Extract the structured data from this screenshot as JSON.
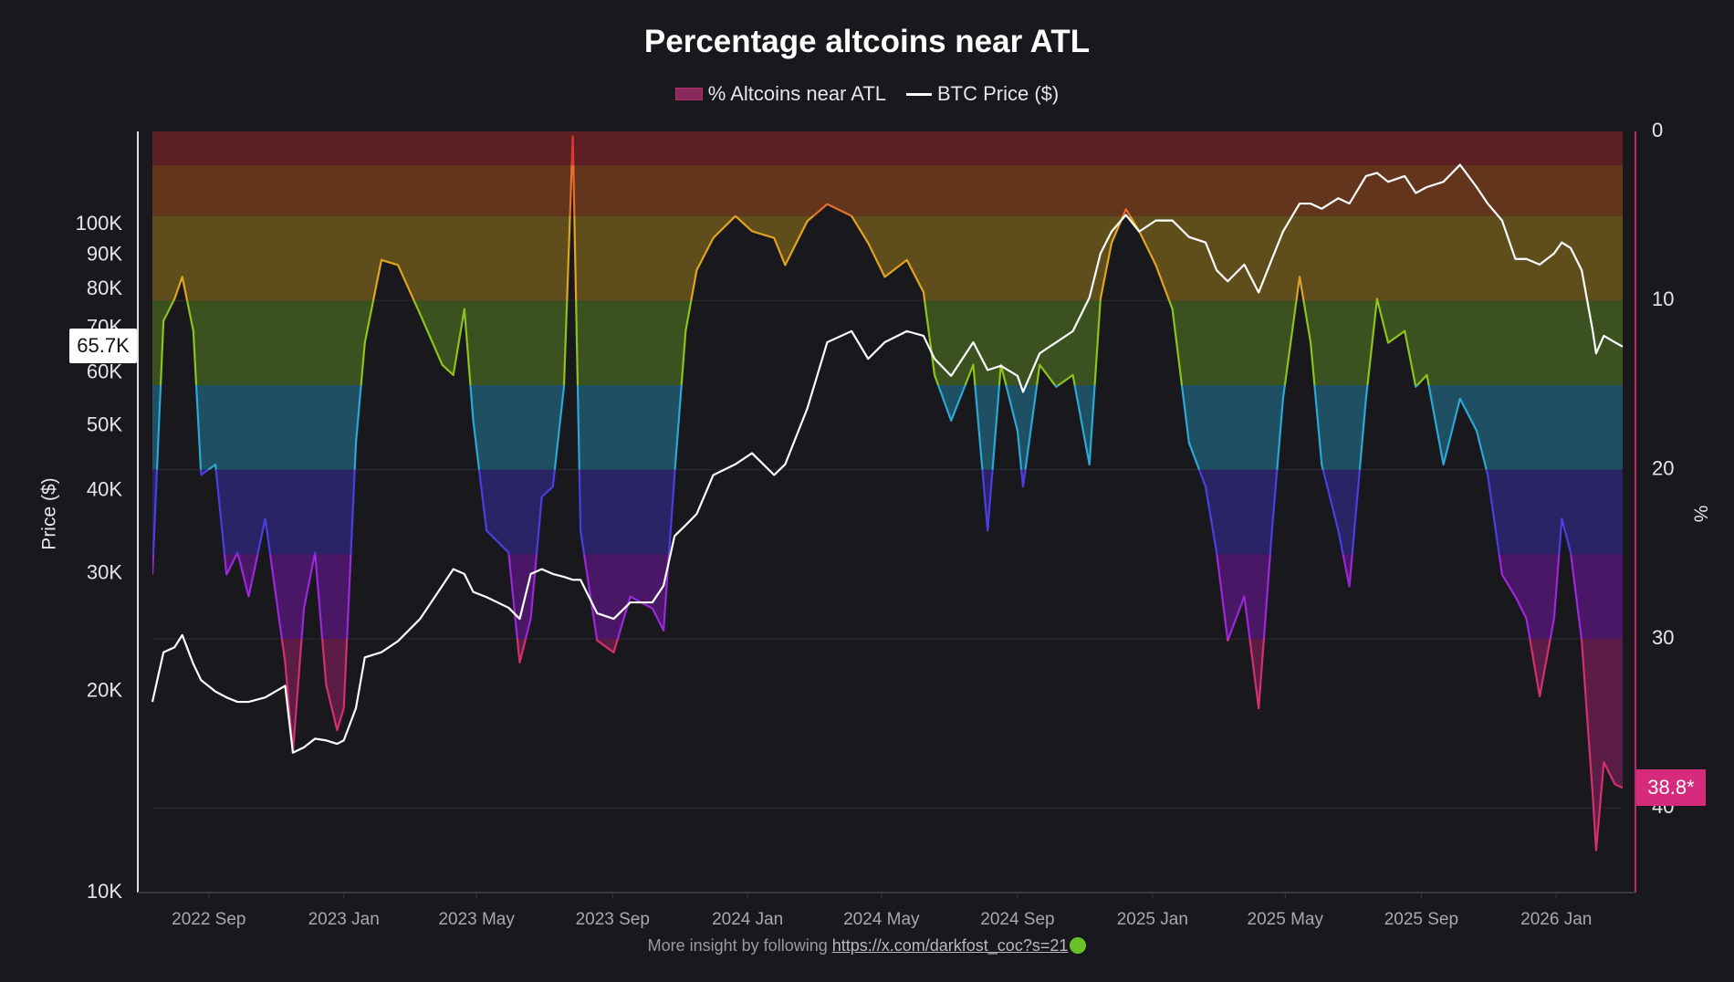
{
  "chart_data": {
    "type": "area",
    "title": "Percentage altcoins near ATL",
    "legend": [
      {
        "label": "% Altcoins near ATL",
        "kind": "area",
        "color": "#8a2a5a"
      },
      {
        "label": "BTC Price ($)",
        "kind": "line",
        "color": "#ffffff"
      }
    ],
    "legend_placement": "top-center",
    "xaxis": {
      "range": [
        "2022-07-12",
        "2026-03-02"
      ],
      "ticks": [
        {
          "date": "2022-09-01",
          "label": "2022 Sep"
        },
        {
          "date": "2023-01-01",
          "label": "2023 Jan"
        },
        {
          "date": "2023-05-01",
          "label": "2023 May"
        },
        {
          "date": "2023-09-01",
          "label": "2023 Sep"
        },
        {
          "date": "2024-01-01",
          "label": "2024 Jan"
        },
        {
          "date": "2024-05-01",
          "label": "2024 May"
        },
        {
          "date": "2024-09-01",
          "label": "2024 Sep"
        },
        {
          "date": "2025-01-01",
          "label": "2025 Jan"
        },
        {
          "date": "2025-05-01",
          "label": "2025 May"
        },
        {
          "date": "2025-09-01",
          "label": "2025 Sep"
        },
        {
          "date": "2026-01-01",
          "label": "2026 Jan"
        }
      ]
    },
    "yaxis_left": {
      "label": "Price ($)",
      "scale": "log",
      "range": [
        10000,
        138000
      ],
      "ticks": [
        {
          "value": 10000,
          "label": "10K"
        },
        {
          "value": 20000,
          "label": "20K"
        },
        {
          "value": 30000,
          "label": "30K"
        },
        {
          "value": 40000,
          "label": "40K"
        },
        {
          "value": 50000,
          "label": "50K"
        },
        {
          "value": 60000,
          "label": "60K"
        },
        {
          "value": 70000,
          "label": "70K"
        },
        {
          "value": 80000,
          "label": "80K"
        },
        {
          "value": 90000,
          "label": "90K"
        },
        {
          "value": 100000,
          "label": "100K"
        }
      ],
      "current_label": "65.7K"
    },
    "yaxis_right": {
      "label": "%",
      "inverted": true,
      "range": [
        0,
        45
      ],
      "ticks": [
        {
          "value": 0,
          "label": "0"
        },
        {
          "value": 10,
          "label": "10"
        },
        {
          "value": 20,
          "label": "20"
        },
        {
          "value": 30,
          "label": "30"
        },
        {
          "value": 40,
          "label": "40"
        }
      ],
      "current_label": "38.8*"
    },
    "grid": true,
    "bands": [
      {
        "from": 0,
        "to": 2,
        "fill": "#5b1f24",
        "line": "#e0362e"
      },
      {
        "from": 2,
        "to": 5,
        "fill": "#63351c",
        "line": "#e8702a"
      },
      {
        "from": 5,
        "to": 10,
        "fill": "#5f4e1c",
        "line": "#e0a41e"
      },
      {
        "from": 10,
        "to": 15,
        "fill": "#3c5120",
        "line": "#8cc41c"
      },
      {
        "from": 15,
        "to": 20,
        "fill": "#1f4f62",
        "line": "#2ca8d6"
      },
      {
        "from": 20,
        "to": 25,
        "fill": "#2a2466",
        "line": "#4b3ee2"
      },
      {
        "from": 25,
        "to": 30,
        "fill": "#491766",
        "line": "#9b28da"
      },
      {
        "from": 30,
        "to": 45,
        "fill": "#5b1d45",
        "line": "#d43070"
      }
    ],
    "dates": [
      "2022-07-12",
      "2022-07-22",
      "2022-08-01",
      "2022-08-08",
      "2022-08-18",
      "2022-08-25",
      "2022-09-07",
      "2022-09-17",
      "2022-09-27",
      "2022-10-07",
      "2022-10-22",
      "2022-11-09",
      "2022-11-16",
      "2022-11-26",
      "2022-12-06",
      "2022-12-16",
      "2022-12-26",
      "2023-01-01",
      "2023-01-12",
      "2023-01-20",
      "2023-02-04",
      "2023-02-19",
      "2023-03-11",
      "2023-03-31",
      "2023-04-10",
      "2023-04-20",
      "2023-04-28",
      "2023-05-10",
      "2023-05-30",
      "2023-06-09",
      "2023-06-19",
      "2023-06-29",
      "2023-07-09",
      "2023-07-19",
      "2023-07-27",
      "2023-08-03",
      "2023-08-18",
      "2023-09-02",
      "2023-09-17",
      "2023-10-07",
      "2023-10-17",
      "2023-10-27",
      "2023-11-06",
      "2023-11-16",
      "2023-12-01",
      "2023-12-21",
      "2024-01-05",
      "2024-01-25",
      "2024-02-04",
      "2024-02-24",
      "2024-03-13",
      "2024-04-04",
      "2024-04-19",
      "2024-05-04",
      "2024-05-24",
      "2024-06-08",
      "2024-06-18",
      "2024-07-03",
      "2024-07-23",
      "2024-08-05",
      "2024-08-17",
      "2024-09-01",
      "2024-09-06",
      "2024-09-21",
      "2024-10-06",
      "2024-10-21",
      "2024-11-05",
      "2024-11-15",
      "2024-11-25",
      "2024-12-08",
      "2024-12-20",
      "2025-01-04",
      "2025-01-19",
      "2025-02-03",
      "2025-02-18",
      "2025-02-28",
      "2025-03-10",
      "2025-03-25",
      "2025-04-07",
      "2025-04-19",
      "2025-04-29",
      "2025-05-14",
      "2025-05-24",
      "2025-06-03",
      "2025-06-18",
      "2025-06-28",
      "2025-07-13",
      "2025-07-23",
      "2025-08-02",
      "2025-08-17",
      "2025-08-27",
      "2025-09-06",
      "2025-09-21",
      "2025-10-06",
      "2025-10-21",
      "2025-10-31",
      "2025-11-13",
      "2025-11-25",
      "2025-12-05",
      "2025-12-17",
      "2025-12-30",
      "2026-01-06",
      "2026-01-14",
      "2026-01-24",
      "2026-02-03",
      "2026-02-06",
      "2026-02-13",
      "2026-02-23",
      "2026-03-02"
    ],
    "series": [
      {
        "name": "% Altcoins near ATL",
        "axis": "right",
        "values": [
          26.2,
          11.2,
          9.9,
          8.6,
          11.8,
          20.3,
          19.7,
          26.2,
          24.9,
          27.5,
          22.9,
          31.4,
          36.7,
          28.2,
          24.9,
          32.7,
          35.4,
          34.1,
          18.4,
          12.5,
          7.6,
          7.9,
          10.8,
          13.8,
          14.4,
          10.5,
          17.1,
          23.6,
          24.9,
          31.4,
          28.8,
          21.6,
          21.0,
          15.1,
          0.3,
          23.6,
          30.1,
          30.8,
          27.5,
          28.2,
          29.5,
          20.3,
          11.8,
          8.2,
          6.3,
          5.0,
          5.9,
          6.3,
          7.9,
          5.3,
          4.3,
          5.0,
          6.6,
          8.6,
          7.6,
          9.5,
          14.4,
          17.1,
          13.8,
          23.6,
          13.8,
          17.7,
          21.0,
          13.8,
          15.1,
          14.4,
          19.7,
          9.9,
          6.6,
          4.6,
          5.9,
          7.9,
          10.5,
          18.4,
          21.0,
          24.9,
          30.1,
          27.5,
          34.1,
          23.6,
          15.8,
          8.6,
          12.5,
          19.7,
          23.6,
          26.9,
          15.8,
          9.9,
          12.5,
          11.8,
          15.1,
          14.4,
          19.7,
          15.8,
          17.7,
          20.3,
          26.2,
          27.5,
          28.8,
          33.4,
          28.8,
          22.9,
          24.9,
          30.1,
          39.3,
          42.5,
          37.3,
          38.6,
          38.8
        ]
      },
      {
        "name": "BTC Price ($)",
        "axis": "left",
        "values": [
          19300,
          22900,
          23300,
          24300,
          22000,
          20800,
          20000,
          19600,
          19300,
          19300,
          19600,
          20400,
          16200,
          16500,
          17000,
          16900,
          16700,
          16900,
          18900,
          22500,
          22900,
          23800,
          25700,
          28800,
          30500,
          30000,
          28200,
          27700,
          26700,
          25700,
          30000,
          30500,
          30000,
          29700,
          29400,
          29400,
          26200,
          25700,
          27200,
          27200,
          28800,
          34200,
          35500,
          36900,
          42200,
          43800,
          45500,
          42200,
          43800,
          53100,
          66700,
          69300,
          63000,
          66700,
          69300,
          68200,
          63000,
          59400,
          66700,
          60600,
          61500,
          59400,
          56200,
          64200,
          66700,
          69300,
          77800,
          90600,
          97700,
          103500,
          97700,
          101500,
          101500,
          95900,
          94100,
          85500,
          82300,
          87200,
          79200,
          88900,
          97700,
          107600,
          107600,
          105700,
          109600,
          107600,
          118300,
          119600,
          116000,
          118300,
          111600,
          113900,
          116000,
          123000,
          113900,
          107600,
          101500,
          88900,
          88900,
          87200,
          90600,
          94100,
          92300,
          85500,
          69300,
          64200,
          68200,
          66700,
          65700
        ]
      }
    ]
  },
  "footer": {
    "text": "More insight by following ",
    "link": "https://x.com/darkfost_coc?s=21"
  }
}
